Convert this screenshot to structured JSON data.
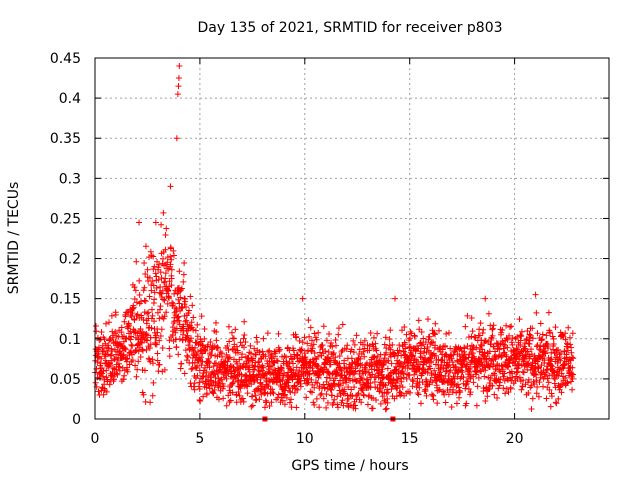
{
  "chart_data": {
    "type": "scatter",
    "title": "Day 135 of 2021, SRMTID for receiver p803",
    "xlabel": "GPS time / hours",
    "ylabel": "SRMTID / TECUs",
    "xlim": [
      0,
      24.5
    ],
    "ylim": [
      0,
      0.45
    ],
    "xticks": [
      0,
      5,
      10,
      15,
      20
    ],
    "xtick_labels": [
      "0",
      "5",
      "10",
      "15",
      "20"
    ],
    "yticks": [
      0,
      0.05,
      0.1,
      0.15,
      0.2,
      0.25,
      0.3,
      0.35,
      0.4,
      0.45
    ],
    "ytick_labels": [
      "0",
      "0.05",
      "0.1",
      "0.15",
      "0.2",
      "0.25",
      "0.3",
      "0.35",
      "0.4",
      "0.45"
    ],
    "grid": true,
    "marker": "+",
    "series": [
      {
        "name": "SRMTID",
        "color": "#ff0000",
        "x_range": [
          0,
          22.8
        ],
        "approx_mean_by_hour": [
          [
            0,
            0.07
          ],
          [
            1,
            0.08
          ],
          [
            2,
            0.11
          ],
          [
            3,
            0.14
          ],
          [
            3.5,
            0.17
          ],
          [
            4,
            0.13
          ],
          [
            5,
            0.07
          ],
          [
            6,
            0.06
          ],
          [
            7,
            0.06
          ],
          [
            8,
            0.06
          ],
          [
            9,
            0.05
          ],
          [
            10,
            0.07
          ],
          [
            11,
            0.06
          ],
          [
            12,
            0.05
          ],
          [
            13,
            0.06
          ],
          [
            14,
            0.06
          ],
          [
            15,
            0.07
          ],
          [
            16,
            0.07
          ],
          [
            17,
            0.06
          ],
          [
            18,
            0.07
          ],
          [
            19,
            0.08
          ],
          [
            20,
            0.07
          ],
          [
            21,
            0.07
          ],
          [
            22,
            0.07
          ]
        ],
        "peaks": [
          {
            "x": 3.6,
            "y": 0.29
          },
          {
            "x": 3.9,
            "y": 0.35
          },
          {
            "x": 3.95,
            "y": 0.405
          },
          {
            "x": 3.98,
            "y": 0.415
          },
          {
            "x": 4.0,
            "y": 0.425
          },
          {
            "x": 4.02,
            "y": 0.44
          },
          {
            "x": 2.1,
            "y": 0.245
          },
          {
            "x": 2.9,
            "y": 0.245
          },
          {
            "x": 9.9,
            "y": 0.15
          },
          {
            "x": 14.3,
            "y": 0.15
          },
          {
            "x": 18.6,
            "y": 0.15
          },
          {
            "x": 21.0,
            "y": 0.155
          }
        ],
        "count": 2600
      }
    ],
    "marks_at_zero": [
      8.1,
      14.2
    ]
  }
}
